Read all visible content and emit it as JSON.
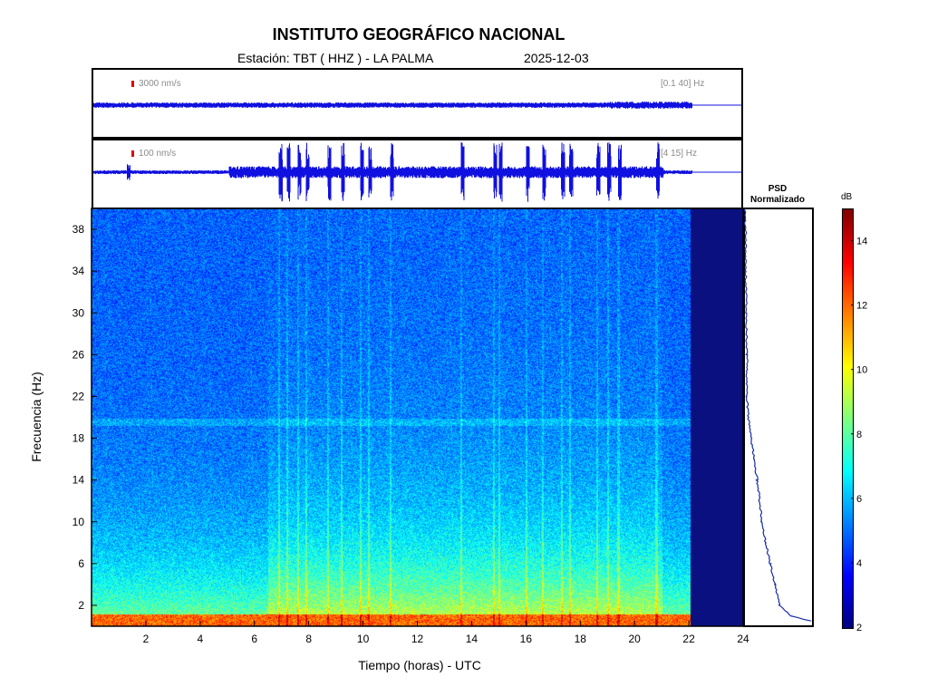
{
  "header": {
    "title": "INSTITUTO GEOGRÁFICO NACIONAL",
    "station": "Estación:  TBT ( HHZ ) - LA PALMA",
    "date": "2025-12-03"
  },
  "seismograms": [
    {
      "scale_label": "3000 nm/s",
      "band_label": "[0.1 40] Hz"
    },
    {
      "scale_label": "100 nm/s",
      "band_label": "[4 15] Hz"
    }
  ],
  "psd": {
    "title_line1": "PSD",
    "title_line2": "Normalizado"
  },
  "colorbar": {
    "unit": "dB",
    "range": [
      2,
      15
    ],
    "ticks": [
      2,
      4,
      6,
      8,
      10,
      12,
      14
    ]
  },
  "chart_data": [
    {
      "type": "heatmap",
      "title": "",
      "xlabel": "Tiempo (horas) - UTC",
      "ylabel": "Frecuencia  (Hz)",
      "xlim": [
        0,
        24
      ],
      "ylim": [
        0,
        40
      ],
      "xticks": [
        2,
        4,
        6,
        8,
        10,
        12,
        14,
        16,
        18,
        20,
        22,
        24
      ],
      "yticks": [
        2,
        6,
        10,
        14,
        18,
        22,
        26,
        30,
        34,
        38
      ],
      "data_end_hour": 22.05,
      "transient_hours": [
        6.9,
        7.2,
        7.6,
        7.9,
        8.7,
        9.2,
        9.9,
        10.2,
        11.0,
        13.6,
        14.8,
        15.0,
        16.0,
        16.6,
        17.3,
        17.6,
        18.6,
        19.0,
        19.4,
        20.8
      ],
      "spectral_lines_hz": [
        0.5,
        19.6
      ]
    },
    {
      "type": "line",
      "title": "PSD Normalizado",
      "x_range": [
        0,
        1
      ],
      "ylim": [
        0,
        40
      ],
      "points": [
        {
          "f": 0.5,
          "p": 0.98
        },
        {
          "f": 1,
          "p": 0.68
        },
        {
          "f": 2,
          "p": 0.52
        },
        {
          "f": 4,
          "p": 0.45
        },
        {
          "f": 6,
          "p": 0.38
        },
        {
          "f": 8,
          "p": 0.31
        },
        {
          "f": 10,
          "p": 0.25
        },
        {
          "f": 12,
          "p": 0.22
        },
        {
          "f": 14,
          "p": 0.18
        },
        {
          "f": 16,
          "p": 0.14
        },
        {
          "f": 18,
          "p": 0.09
        },
        {
          "f": 20,
          "p": 0.05
        },
        {
          "f": 22,
          "p": 0.03
        },
        {
          "f": 26,
          "p": 0.03
        },
        {
          "f": 30,
          "p": 0.02
        },
        {
          "f": 34,
          "p": 0.01
        },
        {
          "f": 38,
          "p": 0.01
        },
        {
          "f": 40,
          "p": 0.0
        }
      ]
    }
  ]
}
